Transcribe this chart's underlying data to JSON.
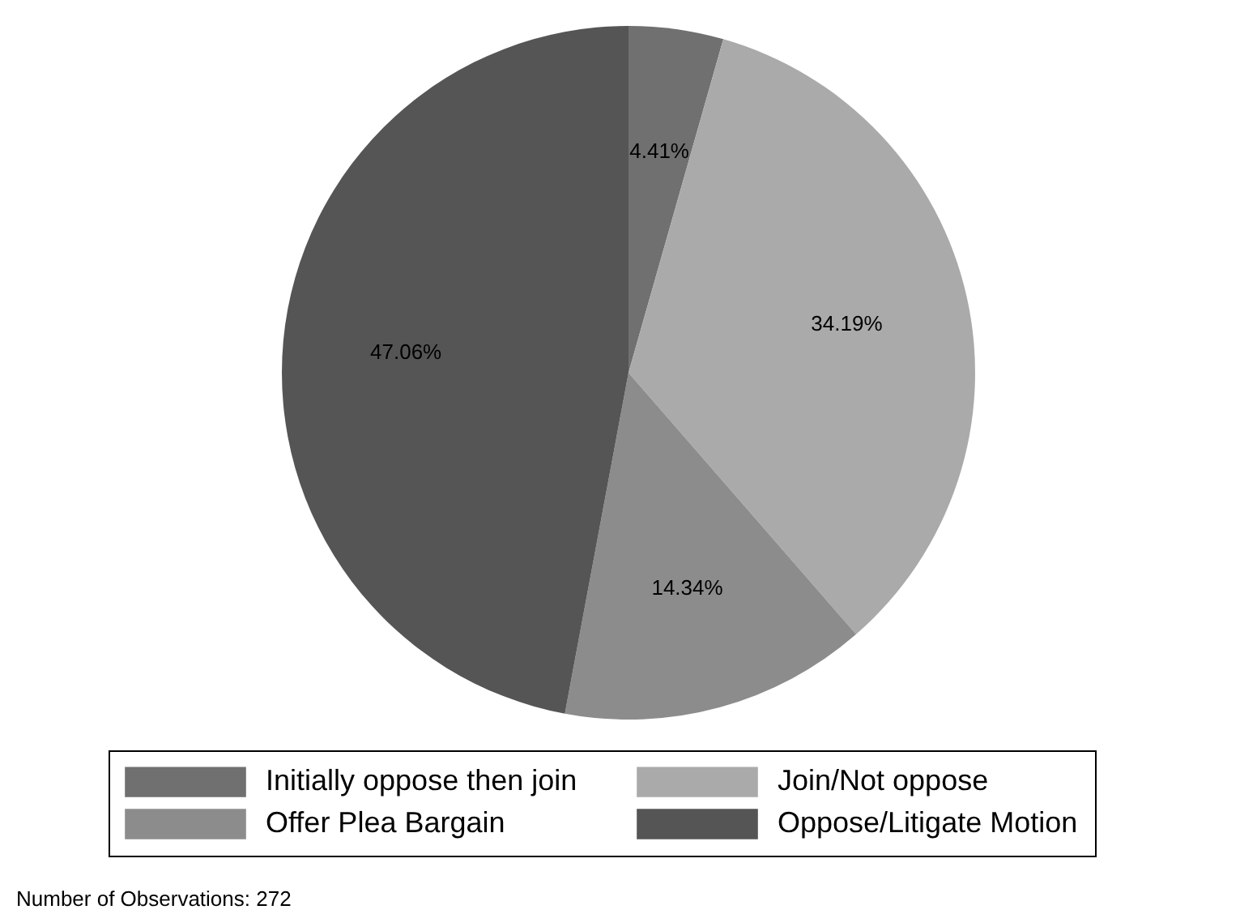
{
  "chart_data": {
    "type": "pie",
    "categories": [
      "Initially oppose then join",
      "Join/Not oppose",
      "Offer Plea Bargain",
      "Oppose/Litigate Motion"
    ],
    "values": [
      4.41,
      34.19,
      14.34,
      47.06
    ],
    "colors": [
      "#707070",
      "#aaaaaa",
      "#8c8c8c",
      "#555555"
    ],
    "value_labels": [
      "4.41%",
      "34.19%",
      "14.34%",
      "47.06%"
    ],
    "legend": "bottom",
    "annotations": [
      "Number of Observations: 272"
    ]
  }
}
